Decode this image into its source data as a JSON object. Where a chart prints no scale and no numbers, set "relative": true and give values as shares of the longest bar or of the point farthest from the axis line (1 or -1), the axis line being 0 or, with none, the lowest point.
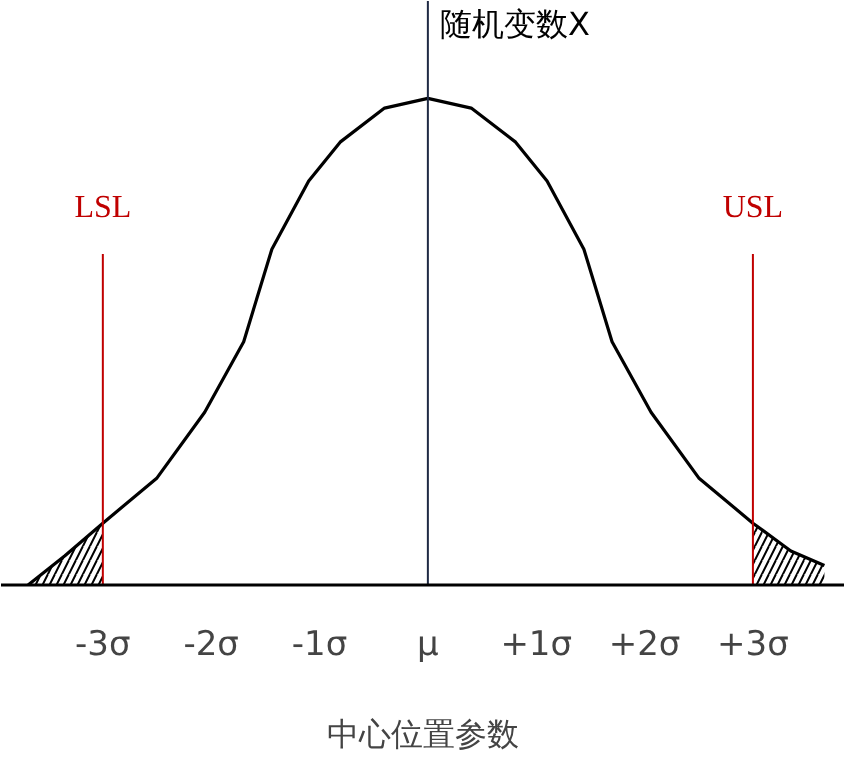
{
  "chart_data": {
    "type": "line",
    "relative": true,
    "xlabel": "中心位置参数",
    "xlim": [
      -3.94,
      3.85
    ],
    "xticks": [
      {
        "value": -3,
        "label": "-3σ"
      },
      {
        "value": -2,
        "label": "-2σ"
      },
      {
        "value": -1,
        "label": "-1σ"
      },
      {
        "value": 0,
        "label": "μ"
      },
      {
        "value": 1,
        "label": "+1σ"
      },
      {
        "value": 2,
        "label": "+2σ"
      },
      {
        "value": 3,
        "label": "+3σ"
      }
    ],
    "series": [
      {
        "color": "#000000",
        "x": [
          -3.69,
          -3.35,
          -3,
          -2.5,
          -2.06,
          -1.7,
          -1.44,
          -1.1,
          -0.81,
          -0.4,
          0,
          0.4,
          0.81,
          1.1,
          1.44,
          1.7,
          2.06,
          2.5,
          3,
          3.35,
          3.66
        ],
        "values": [
          0,
          0.06,
          0.127,
          0.22,
          0.355,
          0.5,
          0.69,
          0.83,
          0.91,
          0.98,
          1,
          0.98,
          0.91,
          0.83,
          0.69,
          0.5,
          0.355,
          0.22,
          0.127,
          0.07,
          0.04
        ]
      },
      {
        "type": "area",
        "color": "#000000",
        "x": [
          -3.69,
          -3.35,
          -3
        ],
        "values": [
          0,
          0.06,
          0.127
        ]
      },
      {
        "type": "area",
        "color": "#000000",
        "x": [
          3,
          3.35,
          3.66
        ],
        "values": [
          0.127,
          0.07,
          0.04
        ]
      }
    ],
    "ref_lines": [
      {
        "axis": "x",
        "value": -3,
        "label": "LSL",
        "color": "#c00000"
      },
      {
        "axis": "x",
        "value": 3,
        "label": "USL",
        "color": "#c00000"
      },
      {
        "axis": "x",
        "value": 0,
        "label": "随机变数X",
        "color": "#1f2a44"
      }
    ],
    "grid": false
  }
}
